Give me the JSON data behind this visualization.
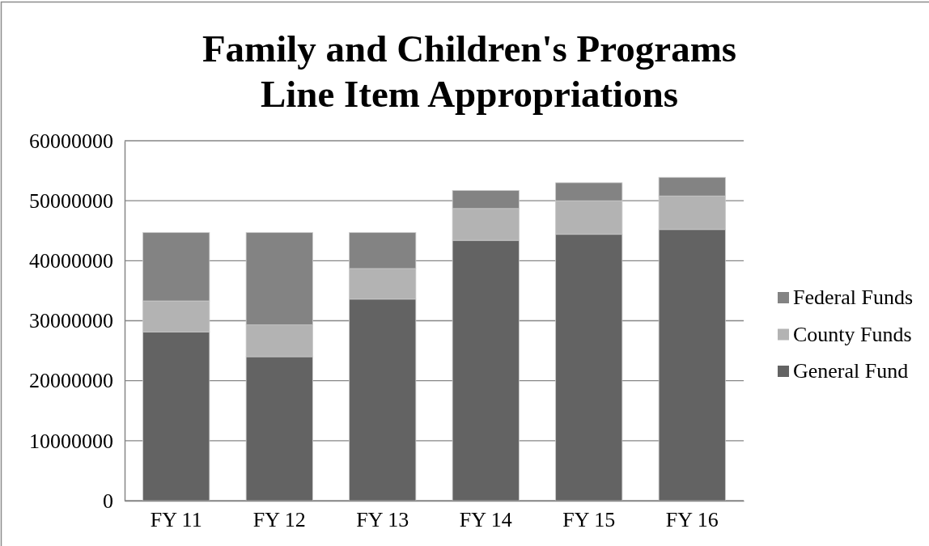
{
  "chart_data": {
    "type": "bar",
    "stacked": true,
    "title": "Family and Children's Programs\nLine Item Appropriations",
    "categories": [
      "FY 11",
      "FY 12",
      "FY 13",
      "FY 14",
      "FY 15",
      "FY 16"
    ],
    "series": [
      {
        "name": "General Fund",
        "color": "#636363",
        "values": [
          28100000,
          24000000,
          33600000,
          43400000,
          44400000,
          45200000
        ]
      },
      {
        "name": "County Funds",
        "color": "#b3b3b3",
        "values": [
          5200000,
          5300000,
          5100000,
          5300000,
          5600000,
          5600000
        ]
      },
      {
        "name": "Federal Funds",
        "color": "#838383",
        "values": [
          11400000,
          15400000,
          6000000,
          3000000,
          3000000,
          3100000
        ]
      }
    ],
    "ylim": [
      0,
      60000000
    ],
    "yticks": [
      0,
      10000000,
      20000000,
      30000000,
      40000000,
      50000000,
      60000000
    ],
    "grid": "y",
    "legend": "right"
  }
}
